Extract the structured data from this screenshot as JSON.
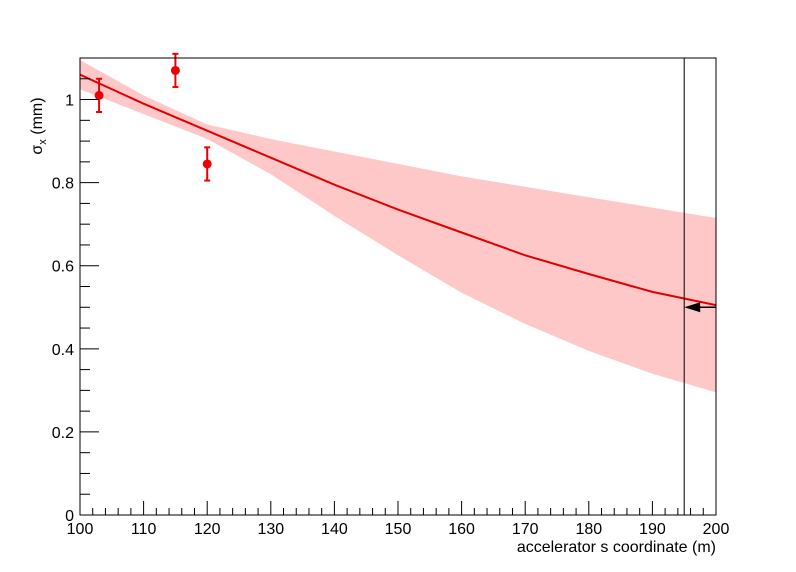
{
  "chart_data": {
    "type": "line",
    "xlabel": "accelerator s coordinate (m)",
    "ylabel_main": "σ",
    "ylabel_sub": "x",
    "ylabel_unit": " (mm)",
    "xlim": [
      100,
      200
    ],
    "ylim": [
      0,
      1.1
    ],
    "x_ticks": [
      100,
      110,
      120,
      130,
      140,
      150,
      160,
      170,
      180,
      190,
      200
    ],
    "x_tick_labels": [
      "100",
      "110",
      "120",
      "130",
      "140",
      "150",
      "160",
      "170",
      "180",
      "190",
      "200"
    ],
    "y_ticks": [
      0,
      0.2,
      0.4,
      0.6,
      0.8,
      1
    ],
    "y_tick_labels": [
      "0",
      "0.2",
      "0.4",
      "0.6",
      "0.8",
      "1"
    ],
    "grid": false,
    "colors": {
      "fit": "#e00000",
      "band": "#ffc8c8",
      "points": "#ee0000",
      "marker": "#000000"
    },
    "fit_curve": {
      "x": [
        100,
        110,
        120,
        130,
        140,
        150,
        160,
        170,
        180,
        190,
        200
      ],
      "y": [
        1.06,
        0.99,
        0.925,
        0.86,
        0.795,
        0.735,
        0.68,
        0.625,
        0.58,
        0.537,
        0.505
      ]
    },
    "confidence_band": {
      "x": [
        100,
        110,
        120,
        130,
        140,
        150,
        160,
        170,
        180,
        190,
        200
      ],
      "upper": [
        1.095,
        1.01,
        0.94,
        0.905,
        0.875,
        0.845,
        0.815,
        0.79,
        0.765,
        0.74,
        0.715
      ],
      "lower": [
        1.025,
        0.965,
        0.905,
        0.82,
        0.72,
        0.625,
        0.535,
        0.46,
        0.395,
        0.34,
        0.295
      ]
    },
    "points": [
      {
        "x": 103,
        "y": 1.01,
        "err": 0.04
      },
      {
        "x": 115,
        "y": 1.07,
        "err": 0.04
      },
      {
        "x": 120,
        "y": 0.845,
        "err": 0.04
      }
    ],
    "vertical_line": {
      "x": 195
    },
    "arrow": {
      "x_from": 200,
      "x_to": 195,
      "y": 0.5
    }
  }
}
